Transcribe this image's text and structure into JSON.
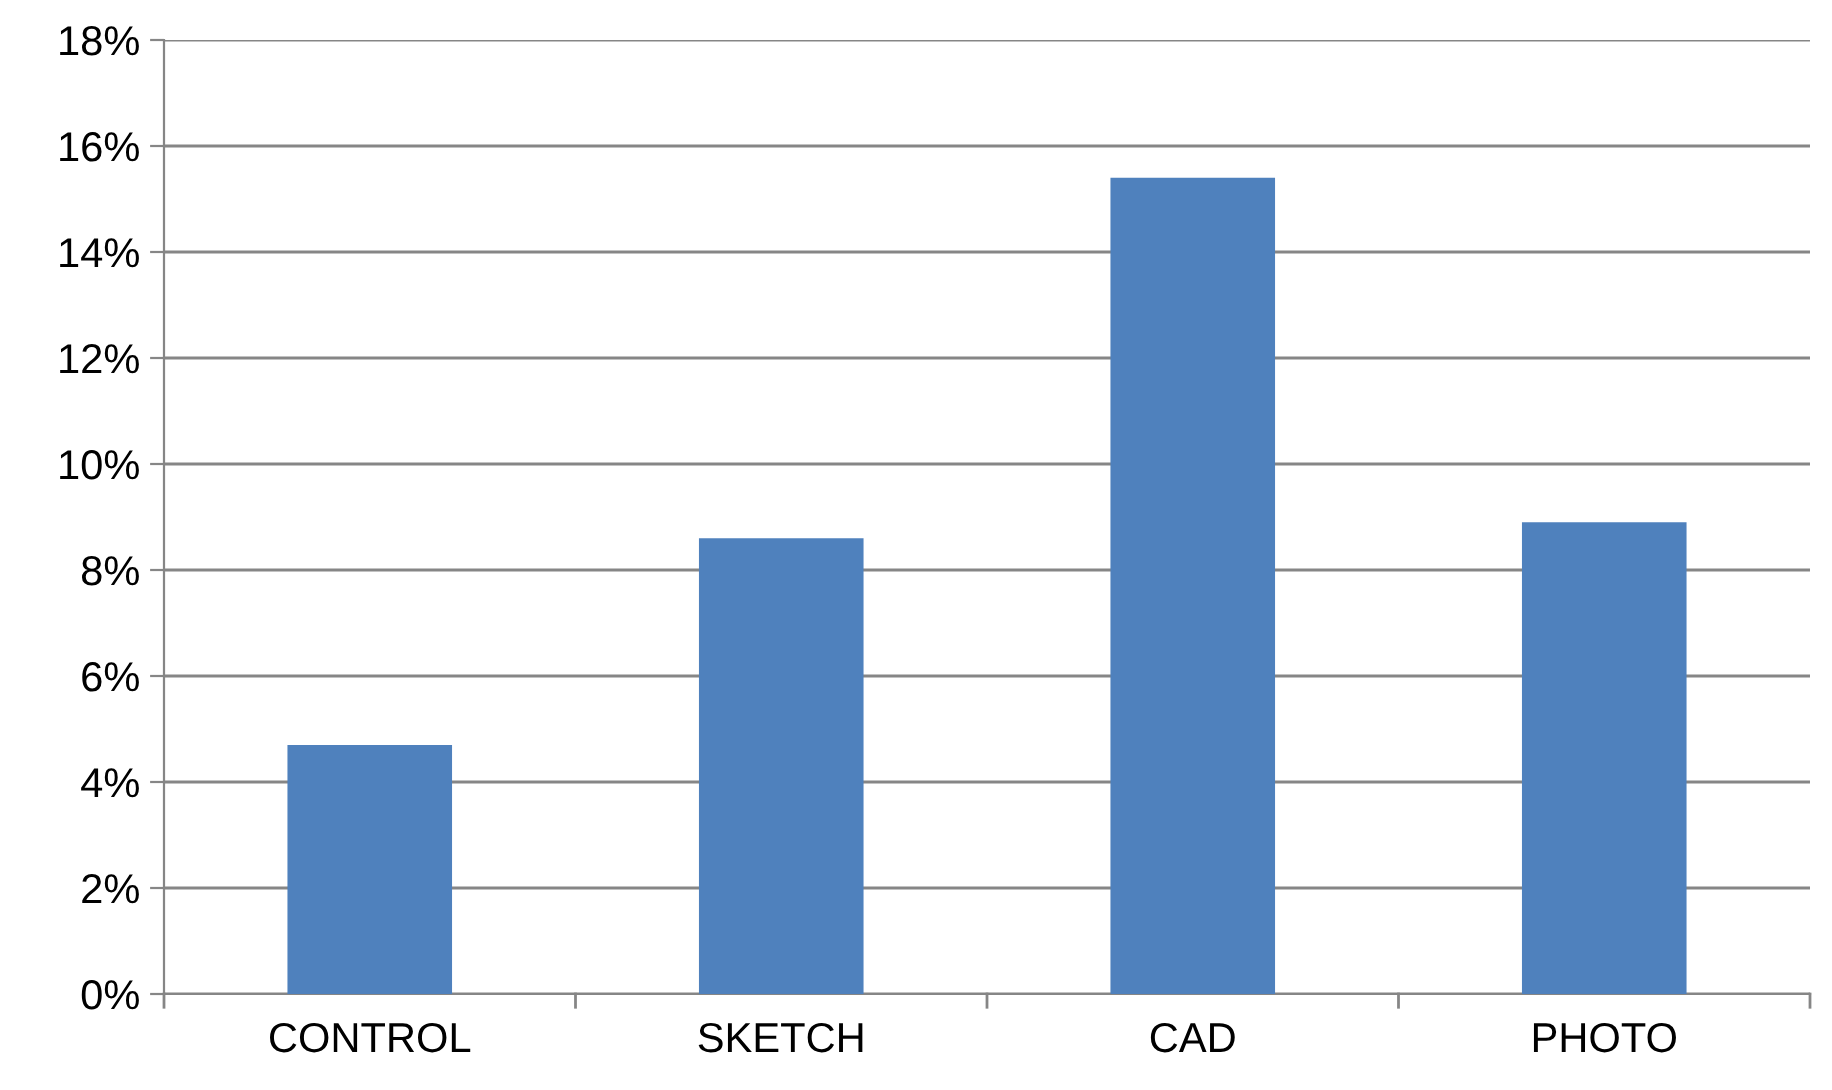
{
  "chart_data": {
    "type": "bar",
    "categories": [
      "CONTROL",
      "SKETCH",
      "CAD",
      "PHOTO"
    ],
    "values": [
      4.7,
      8.6,
      15.4,
      8.9
    ],
    "color": "#4f81bd",
    "ylim": [
      0,
      18
    ],
    "yticks": [
      {
        "value": 0,
        "label": "0%"
      },
      {
        "value": 2,
        "label": "2%"
      },
      {
        "value": 4,
        "label": "4%"
      },
      {
        "value": 6,
        "label": "6%"
      },
      {
        "value": 8,
        "label": "8%"
      },
      {
        "value": 10,
        "label": "10%"
      },
      {
        "value": 12,
        "label": "12%"
      },
      {
        "value": 14,
        "label": "14%"
      },
      {
        "value": 16,
        "label": "16%"
      },
      {
        "value": 18,
        "label": "18%"
      }
    ],
    "grid": "y"
  }
}
